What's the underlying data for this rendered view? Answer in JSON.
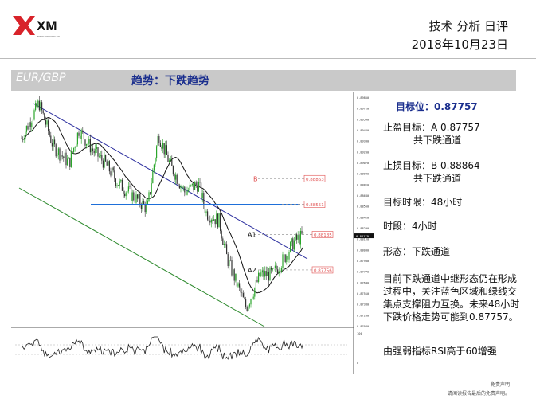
{
  "header": {
    "brand": "XM",
    "brand_sub": "www.xm.com.cn",
    "title": "技术 分析 日评",
    "date": "2018年10月23日"
  },
  "band": {
    "pair": "EUR/GBP",
    "trend": "趋势：下跌趋势"
  },
  "panel": {
    "target": "目标位：0.87757",
    "tp_label": "止盈目标：A 0.87757",
    "tp_sub": "共下跌通道",
    "sl_label": "止损目标：B 0.88864",
    "sl_sub": "共下跌通道",
    "horizon": "目标时限：48小时",
    "timeframe": "时段：4小时",
    "pattern": "形态：下跌通道",
    "description": "目前下跌通道中继形态仍在形成过程中，关注蓝色区域和绿线交集点支撑阻力互换。未来48小时下跌价格走势可能到0.87757。",
    "rsi": "由强弱指标RSI高于60增强"
  },
  "footer": {
    "line1": "免责声明",
    "line2": "请阅读报告最后的免责声明。"
  },
  "colors": {
    "accent": "#1b2f8e",
    "up": "#2aa52a",
    "down": "#333333",
    "channel_upper": "#2b2e9e",
    "channel_lower": "#2d8a2d",
    "resistance": "#1e6fd9",
    "ma": "#111111",
    "level": "#e05050"
  },
  "chart_data": {
    "type": "candlestick",
    "symbol": "EUR/GBP",
    "ylim": [
      0.8708,
      0.8985
    ],
    "y_ticks": [
      "0.89850",
      "0.89720",
      "0.89590",
      "0.89460",
      "0.89330",
      "0.89200",
      "0.89070",
      "0.88940",
      "0.88810",
      "0.88680",
      "0.88550",
      "0.88420",
      "0.88290",
      "0.88160",
      "0.88030",
      "0.87900",
      "0.87770",
      "0.87640",
      "0.87510",
      "0.87380",
      "0.87250",
      "0.87080"
    ],
    "current_price": "0.88179",
    "levels": [
      {
        "name": "B",
        "value": 0.88863,
        "label": "0.88863"
      },
      {
        "name": "",
        "value": 0.88551,
        "label": "0.88551"
      },
      {
        "name": "A1",
        "value": 0.88185,
        "label": "0.88185"
      },
      {
        "name": "A2",
        "value": 0.87756,
        "label": "0.87756"
      }
    ],
    "rsi_ticks": [
      "100",
      "0"
    ]
  }
}
